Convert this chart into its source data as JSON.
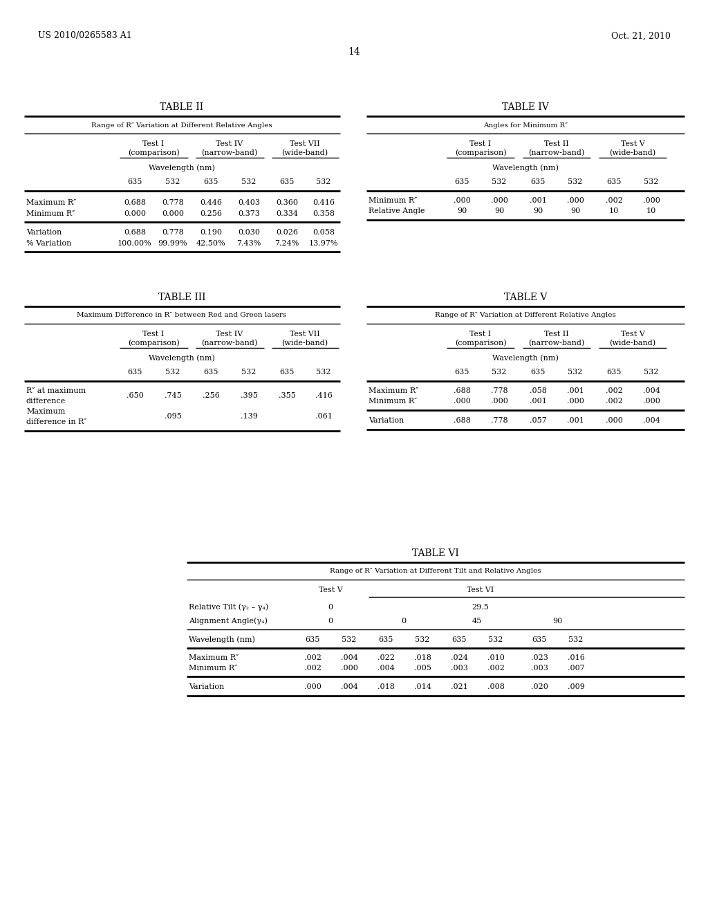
{
  "header_left": "US 2010/0265583 A1",
  "header_right": "Oct. 21, 2010",
  "page_number": "14",
  "background_color": "#ffffff",
  "text_color": "#000000",
  "table2": {
    "title": "TABLE II",
    "subtitle": "Range of R″ Variation at Different Relative Angles",
    "col_groups": [
      "Test I\n(comparison)",
      "Test IV\n(narrow-band)",
      "Test VII\n(wide-band)"
    ],
    "wavelength_label": "Wavelength (nm)",
    "wavelengths": [
      "635",
      "532",
      "635",
      "532",
      "635",
      "532"
    ],
    "rows": [
      [
        "Maximum R″",
        "0.688",
        "0.778",
        "0.446",
        "0.403",
        "0.360",
        "0.416"
      ],
      [
        "Minimum R″",
        "0.000",
        "0.000",
        "0.256",
        "0.373",
        "0.334",
        "0.358"
      ]
    ],
    "rows2": [
      [
        "Variation",
        "0.688",
        "0.778",
        "0.190",
        "0.030",
        "0.026",
        "0.058"
      ],
      [
        "% Variation",
        "100.00%",
        "99.99%",
        "42.50%",
        "7.43%",
        "7.24%",
        "13.97%"
      ]
    ]
  },
  "table3": {
    "title": "TABLE III",
    "subtitle": "Maximum Difference in R″ between Red and Green lasers",
    "col_groups": [
      "Test I\n(comparison)",
      "Test IV\n(narrow-band)",
      "Test VII\n(wide-band)"
    ],
    "wavelength_label": "Wavelength (nm)",
    "wavelengths": [
      "635",
      "532",
      "635",
      "532",
      "635",
      "532"
    ],
    "row1_label1": "R″ at maximum",
    "row1_label2": "difference",
    "row1_vals": [
      ".650",
      ".745",
      ".256",
      ".395",
      ".355",
      ".416"
    ],
    "row2_label1": "Maximum",
    "row2_label2": "difference in R″",
    "row2_vals": [
      ".095",
      ".139",
      ".061"
    ]
  },
  "table4": {
    "title": "TABLE IV",
    "subtitle": "Angles for Minimum R″",
    "col_groups": [
      "Test I\n(comparison)",
      "Test II\n(narrow-band)",
      "Test V\n(wide-band)"
    ],
    "wavelength_label": "Wavelength (nm)",
    "wavelengths": [
      "635",
      "532",
      "635",
      "532",
      "635",
      "532"
    ],
    "rows": [
      [
        "Minimum R″",
        ".000",
        ".000",
        ".001",
        ".000",
        ".002",
        ".000"
      ],
      [
        "Relative Angle",
        "90",
        "90",
        "90",
        "90",
        "10",
        "10"
      ]
    ]
  },
  "table5": {
    "title": "TABLE V",
    "subtitle": "Range of R″ Variation at Different Relative Angles",
    "col_groups": [
      "Test I\n(comparison)",
      "Test II\n(narrow-band)",
      "Test V\n(wide-band)"
    ],
    "wavelength_label": "Wavelength (nm)",
    "wavelengths": [
      "635",
      "532",
      "635",
      "532",
      "635",
      "532"
    ],
    "rows": [
      [
        "Maximum R″",
        ".688",
        ".778",
        ".058",
        ".001",
        ".002",
        ".004"
      ],
      [
        "Minimum R″",
        ".000",
        ".000",
        ".001",
        ".000",
        ".002",
        ".000"
      ]
    ],
    "rows2": [
      [
        "Variation",
        ".688",
        ".778",
        ".057",
        ".001",
        ".000",
        ".004"
      ]
    ]
  },
  "table6": {
    "title": "TABLE VI",
    "subtitle": "Range of R″ Variation at Different Tilt and Relative Angles",
    "test_v_label": "Test V",
    "test_vi_label": "Test VI",
    "relative_tilt_label": "Relative Tilt (γ₂ – γ₄)",
    "relative_tilt_v": "0",
    "relative_tilt_vi": "29.5",
    "alignment_angle_label": "Alignment Angle(γ₄)",
    "alignment_angles": [
      "0",
      "0",
      "45",
      "90"
    ],
    "wavelength_label": "Wavelength (nm)",
    "wavelengths": [
      "635",
      "532",
      "635",
      "532",
      "635",
      "532",
      "635",
      "532"
    ],
    "rows": [
      [
        "Maximum R″",
        ".002",
        ".004",
        ".022",
        ".018",
        ".024",
        ".010",
        ".023",
        ".016"
      ],
      [
        "Minimum R″",
        ".002",
        ".000",
        ".004",
        ".005",
        ".003",
        ".002",
        ".003",
        ".007"
      ]
    ],
    "rows2": [
      [
        "Variation",
        ".000",
        ".004",
        ".018",
        ".014",
        ".021",
        ".008",
        ".020",
        ".009"
      ]
    ]
  }
}
